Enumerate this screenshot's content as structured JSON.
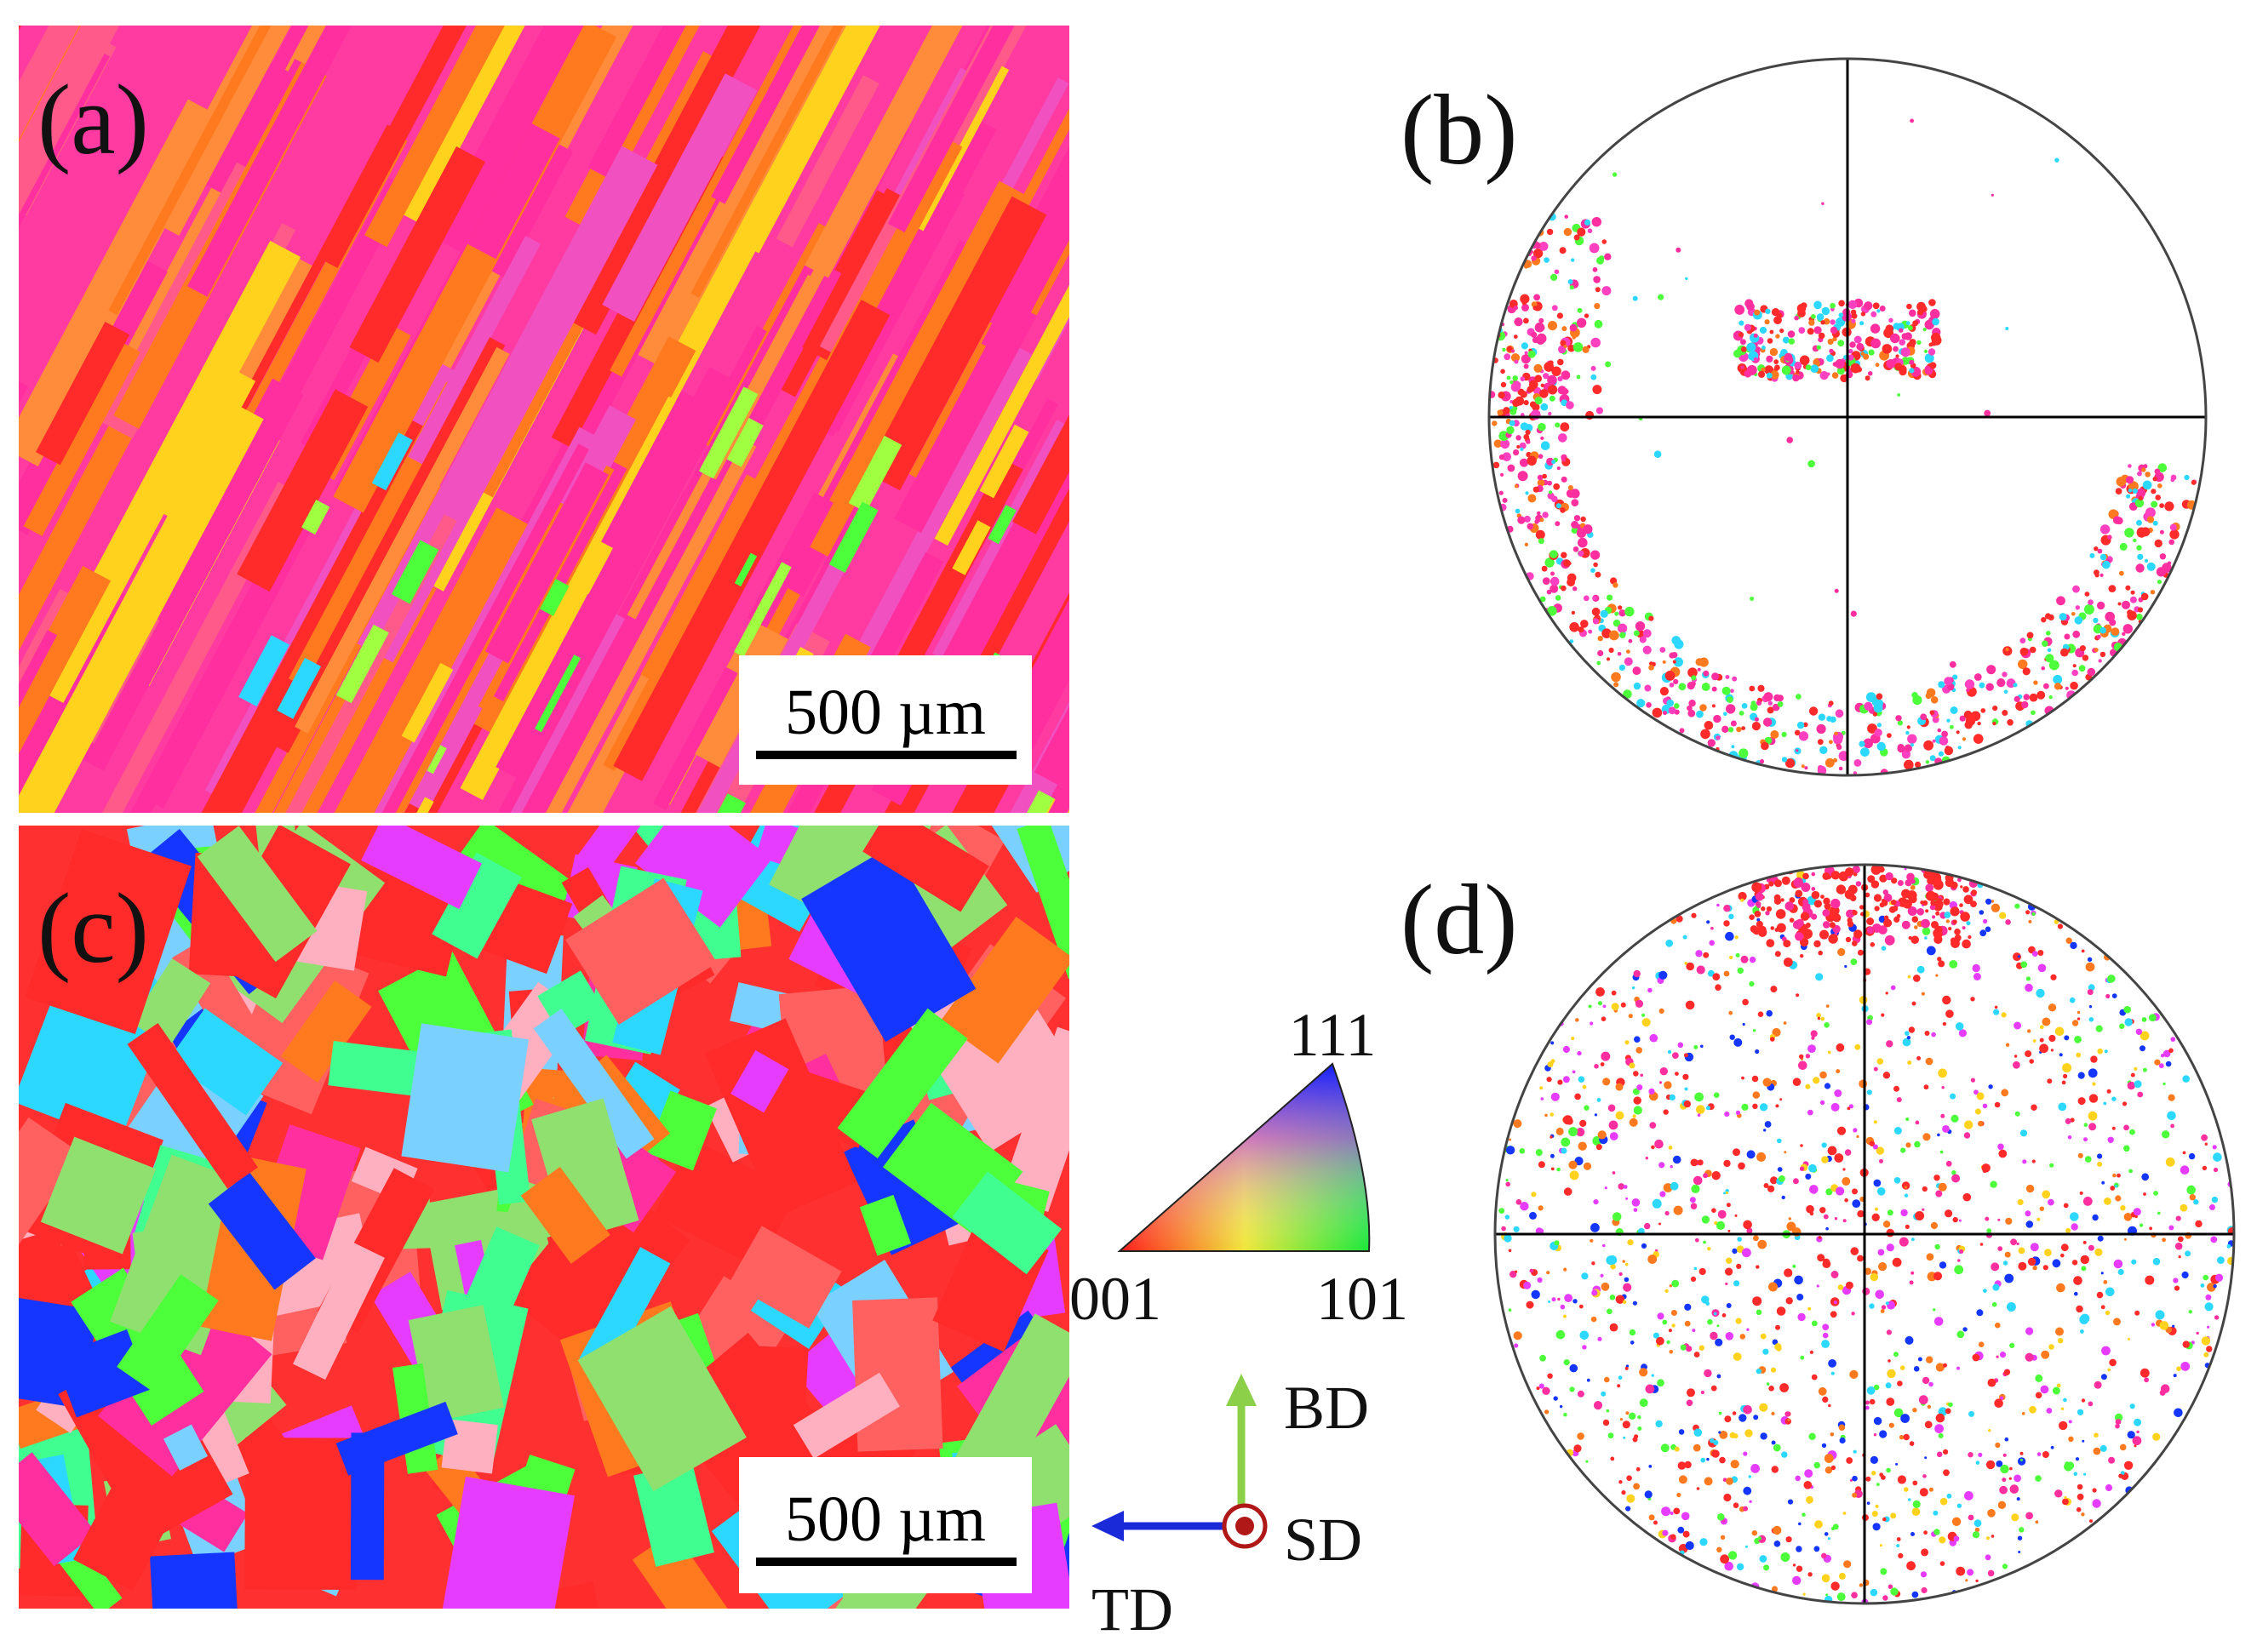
{
  "panels": {
    "a": {
      "label": "(a)",
      "scale_bar": "500 µm"
    },
    "b": {
      "label": "(b)"
    },
    "c": {
      "label": "(c)",
      "scale_bar": "500 µm"
    },
    "d": {
      "label": "(d)"
    }
  },
  "ipf_key": {
    "top": "111",
    "left": "001",
    "right": "101"
  },
  "axes": {
    "bd": "BD",
    "sd": "SD",
    "td": "TD"
  },
  "colors": {
    "pink": "#ff2fa0",
    "orange": "#ff7a1e",
    "red": "#ff2a2a",
    "green": "#4dff3a",
    "blue": "#1436ff",
    "cyan": "#2cd8ff",
    "yellow": "#ffd21e",
    "magenta": "#e63cff",
    "bd_arrow": "#8bd048",
    "td_arrow": "#1a2ad8",
    "sd_symbol": "#b01818"
  }
}
